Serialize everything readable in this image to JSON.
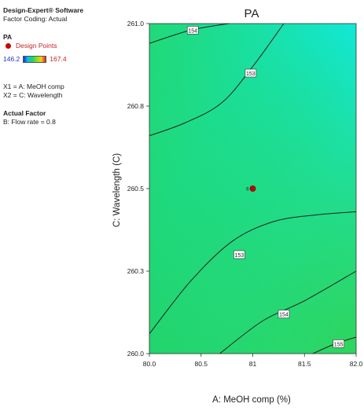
{
  "sidebar": {
    "software": "Design-Expert® Software",
    "factor_coding": "Factor Coding: Actual",
    "response": "PA",
    "design_points_label": "Design Points",
    "range_low": "146.2",
    "range_high": "167.4",
    "x1": "X1 = A: MeOH comp",
    "x2": "X2 = C: Wavelength",
    "actual_factor_title": "Actual Factor",
    "actual_factor_value": "B: Flow rate = 0.8"
  },
  "chart_data": {
    "type": "contour",
    "title": "PA",
    "xlabel": "A: MeOH comp (%)",
    "ylabel": "C: Wavelength (C)",
    "xlim": [
      80.0,
      82.0
    ],
    "ylim": [
      260.0,
      261.0
    ],
    "xticks": [
      "80.0",
      "80.5",
      "81",
      "81.5",
      "82.0"
    ],
    "yticks": [
      "260.0",
      "260.3",
      "260.5",
      "260.8",
      "261.0"
    ],
    "contours": [
      {
        "level": "154",
        "points": [
          [
            80.0,
            260.94
          ],
          [
            80.4,
            260.98
          ],
          [
            80.77,
            261.0
          ]
        ],
        "label_at": [
          80.42,
          260.98
        ]
      },
      {
        "level": "153",
        "points": [
          [
            80.0,
            260.66
          ],
          [
            80.35,
            260.7
          ],
          [
            80.7,
            260.76
          ],
          [
            81.0,
            260.87
          ],
          [
            81.3,
            261.0
          ]
        ],
        "label_at": [
          80.98,
          260.85
        ]
      },
      {
        "level": "153",
        "points": [
          [
            80.0,
            260.06
          ],
          [
            80.4,
            260.22
          ],
          [
            80.8,
            260.34
          ],
          [
            81.2,
            260.4
          ],
          [
            81.6,
            260.42
          ],
          [
            82.0,
            260.43
          ]
        ],
        "label_at": [
          80.87,
          260.3
        ]
      },
      {
        "level": "154",
        "points": [
          [
            80.68,
            260.0
          ],
          [
            81.1,
            260.1
          ],
          [
            81.5,
            260.16
          ],
          [
            82.0,
            260.25
          ]
        ],
        "label_at": [
          81.3,
          260.12
        ]
      },
      {
        "level": "155",
        "points": [
          [
            81.58,
            260.0
          ],
          [
            81.8,
            260.03
          ],
          [
            82.0,
            260.05
          ]
        ],
        "label_at": [
          81.83,
          260.03
        ]
      }
    ],
    "design_points": [
      {
        "x": 81.0,
        "y": 260.5,
        "label": "6"
      }
    ],
    "grid": false,
    "legend": "none"
  }
}
